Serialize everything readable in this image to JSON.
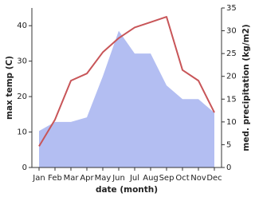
{
  "chart_data": {
    "type": "line",
    "x_label": "date (month)",
    "y_label": "max temp (C)",
    "y2_label": "med. precipitation (kg/m2)",
    "categories": [
      "Jan",
      "Feb",
      "Mar",
      "Apr",
      "May",
      "Jun",
      "Jul",
      "Aug",
      "Sep",
      "Oct",
      "Nov",
      "Dec"
    ],
    "series": [
      {
        "name": "med. precipitation",
        "type": "area",
        "axis": "y2",
        "color": "#b3bef2",
        "values": [
          8,
          10,
          10,
          11,
          20,
          30,
          25,
          25,
          18,
          15,
          15,
          12
        ]
      },
      {
        "name": "max temp",
        "type": "line",
        "color": "#c85558",
        "values": [
          6,
          13.5,
          24.5,
          26.5,
          32.5,
          36.5,
          39.5,
          41,
          42.5,
          27.5,
          24.5,
          15.5
        ]
      }
    ],
    "ylim": [
      0,
      45
    ],
    "yticks": [
      0,
      10,
      20,
      30,
      40
    ],
    "y2lim": [
      0,
      35
    ],
    "y2ticks": [
      0,
      5,
      10,
      15,
      20,
      25,
      30,
      35
    ]
  }
}
